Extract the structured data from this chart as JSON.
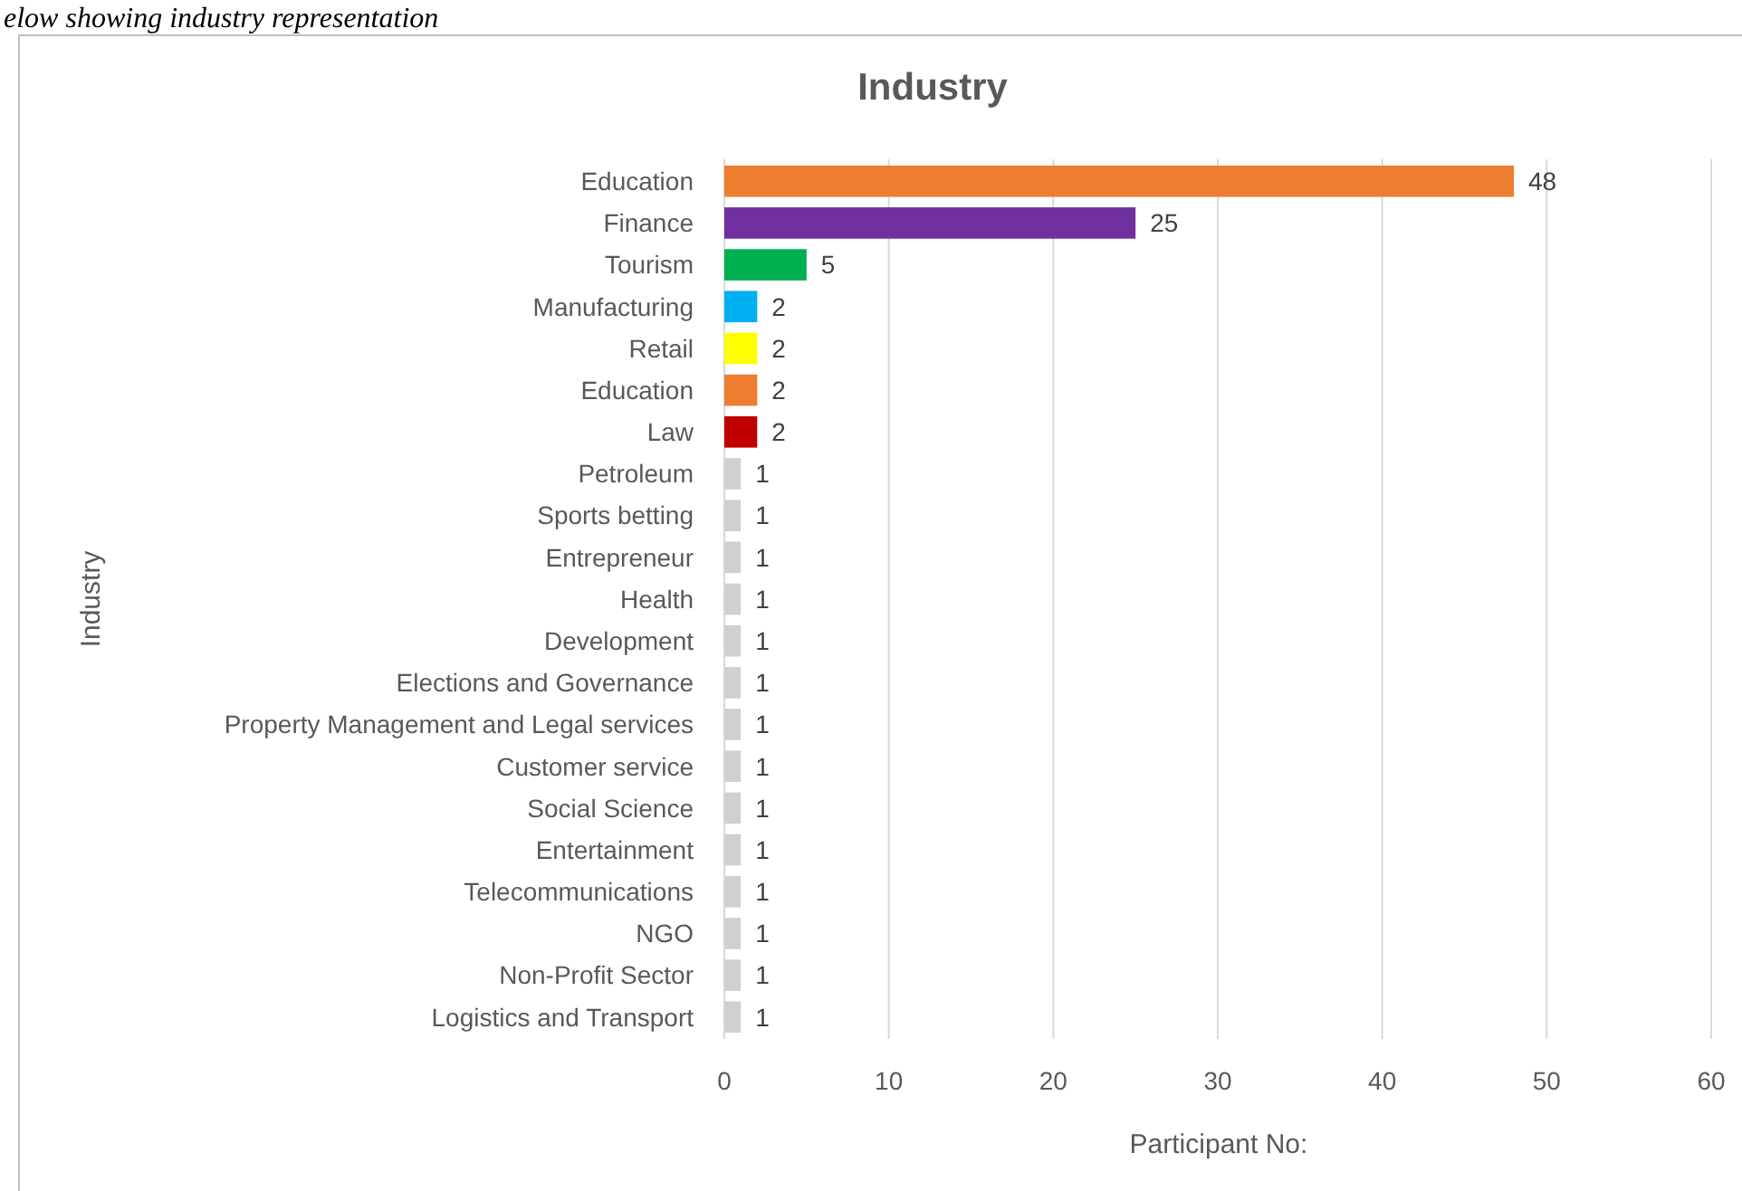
{
  "chart_data": {
    "type": "bar",
    "orientation": "horizontal",
    "title": "Industry",
    "xlabel": "Participant No:",
    "ylabel": "Industry",
    "annotations": [
      "elow showing industry representation"
    ],
    "categories": [
      "Education",
      "Finance",
      "Tourism",
      "Manufacturing",
      "Retail",
      "Education",
      "Law",
      "Petroleum",
      "Sports betting",
      "Entrepreneur",
      "Health",
      "Development",
      "Elections and Governance",
      "Property Management and Legal services",
      "Customer service",
      "Social Science",
      "Entertainment",
      "Telecommunications",
      "NGO",
      "Non-Profit Sector",
      "Logistics and Transport"
    ],
    "values": [
      48,
      25,
      5,
      2,
      2,
      2,
      2,
      1,
      1,
      1,
      1,
      1,
      1,
      1,
      1,
      1,
      1,
      1,
      1,
      1,
      1
    ],
    "colors": [
      "#ed7d31",
      "#7030a0",
      "#00b050",
      "#00b0f0",
      "#ffff00",
      "#ed7d31",
      "#c00000",
      "#d0d0d0",
      "#d0d0d0",
      "#d0d0d0",
      "#d0d0d0",
      "#d0d0d0",
      "#d0d0d0",
      "#d0d0d0",
      "#d0d0d0",
      "#d0d0d0",
      "#d0d0d0",
      "#d0d0d0",
      "#d0d0d0",
      "#d0d0d0",
      "#d0d0d0"
    ],
    "xlim": [
      0,
      60
    ],
    "xticks": [
      0,
      10,
      20,
      30,
      40,
      50,
      60
    ],
    "grid": "x",
    "data_labels": true
  }
}
